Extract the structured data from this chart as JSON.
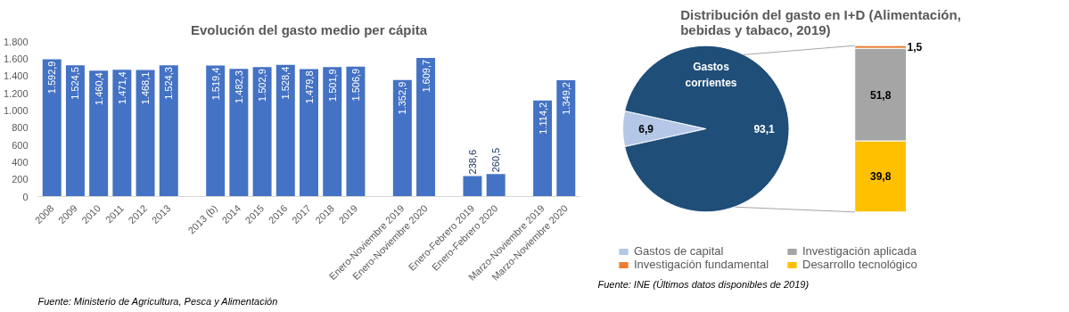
{
  "chart_data": [
    {
      "type": "bar",
      "title": "Evolución del gasto medio per cápita",
      "categories": [
        "2008",
        "2009",
        "2010",
        "2011",
        "2012",
        "2013",
        null,
        "2013 (b)",
        "2014",
        "2015",
        "2016",
        "2017",
        "2018",
        "2019",
        null,
        "Enero-Noviembre 2019",
        "Enero-Noviembre 2020",
        null,
        "Enero-Febrero 2019",
        "Enero-Febrero 2020",
        null,
        "Marzo-Noviembre 2019",
        "Marzo-Noviembre 2020"
      ],
      "values": [
        1592.9,
        1524.5,
        1460.4,
        1471.4,
        1468.1,
        1524.3,
        null,
        1519.4,
        1482.3,
        1502.9,
        1528.4,
        1479.8,
        1501.9,
        1506.9,
        null,
        1352.9,
        1609.7,
        null,
        238.6,
        260.5,
        null,
        1114.2,
        1349.2
      ],
      "value_labels": [
        "1.592,9",
        "1.524,5",
        "1.460,4",
        "1.471,4",
        "1.468,1",
        "1.524,3",
        null,
        "1.519,4",
        "1.482,3",
        "1.502,9",
        "1.528,4",
        "1.479,8",
        "1.501,9",
        "1.506,9",
        null,
        "1.352,9",
        "1.609,7",
        null,
        "238,6",
        "260,5",
        null,
        "1.114,2",
        "1.349,2"
      ],
      "color": "#4472c4",
      "ylim": [
        0,
        1800
      ],
      "yticks": [
        0,
        200,
        400,
        600,
        800,
        {
          "value": 1000,
          "label": "1.000"
        },
        {
          "value": 1200,
          "label": "1.200"
        },
        {
          "value": 1400,
          "label": "1.400"
        },
        {
          "value": 1600,
          "label": "1.600"
        },
        {
          "value": 1800,
          "label": "1.800"
        }
      ],
      "grid": false,
      "annotations": [
        "Fuente: Ministerio de Agricultura, Pesca y Alimentación"
      ]
    },
    {
      "type": "pie",
      "title": "Distribución del gasto en I+D (Alimentación, bebidas y tabaco, 2019)",
      "categories": [
        "Gastos de capital",
        "Gastos corrientes"
      ],
      "values": [
        6.9,
        93.1
      ],
      "colors": [
        "#b4c7e7",
        "#1f4e79"
      ],
      "value_labels": [
        "6,9",
        "93,1"
      ],
      "legend": "bottom",
      "annotations": [
        "Fuente: INE (Últimos datos disponibles de 2019)"
      ]
    },
    {
      "type": "bar",
      "stacked": true,
      "categories": [
        null
      ],
      "tick_labels": false,
      "legend": "bottom",
      "series": [
        {
          "name": "Desarrollo tecnológico",
          "color": "#ffc000",
          "values": [
            39.8
          ],
          "value_labels": [
            "39,8"
          ]
        },
        {
          "name": "Investigación aplicada",
          "color": "#a5a5a5",
          "values": [
            51.8
          ],
          "value_labels": [
            "51,8"
          ]
        },
        {
          "name": "Investigación fundamental",
          "color": "#ed7d31",
          "values": [
            1.5
          ],
          "value_labels": [
            "1,5"
          ]
        }
      ]
    }
  ]
}
